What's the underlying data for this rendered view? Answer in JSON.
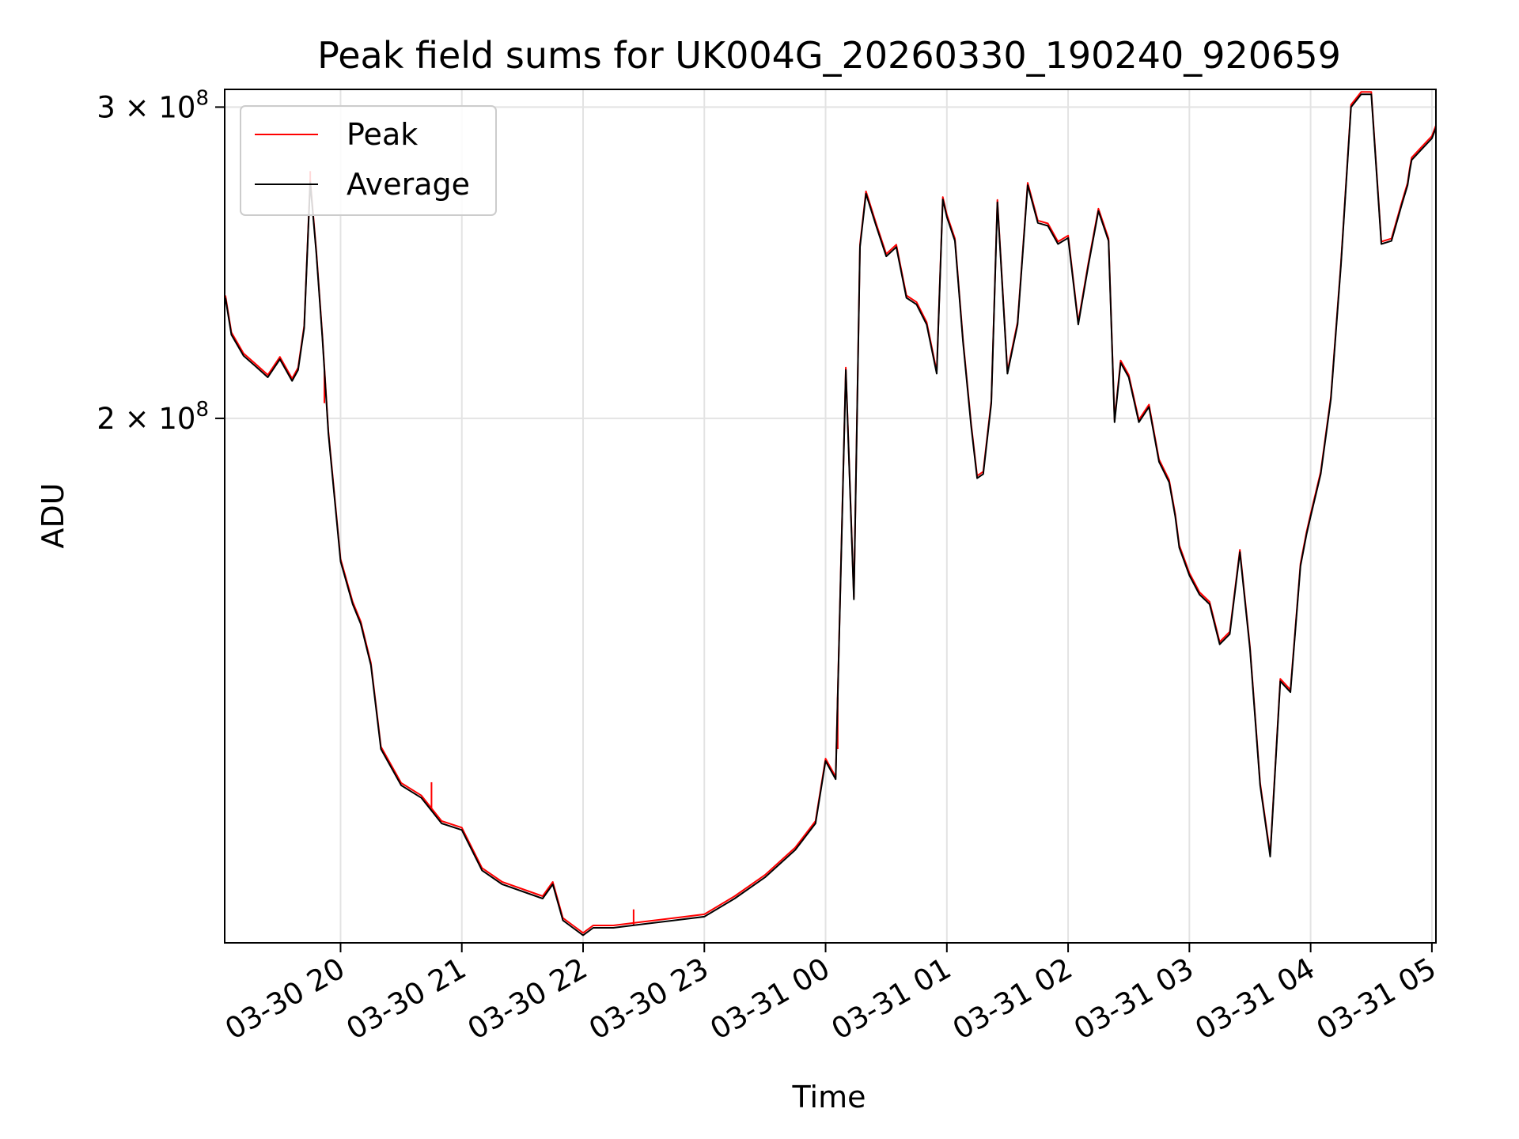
{
  "chart_data": {
    "type": "line",
    "title": "Peak field sums for UK004G_20260330_190240_920659",
    "xlabel": "Time",
    "ylabel": "ADU",
    "y_scale": "log",
    "grid": true,
    "legend_position": "top-left",
    "xlim": [
      "2026-03-30 19:02:40",
      "2026-03-31 05:02:00"
    ],
    "ylim": [
      101000000,
      307000000
    ],
    "x_ticks": [
      "03-30 20",
      "03-30 21",
      "03-30 22",
      "03-30 23",
      "03-31 00",
      "03-31 01",
      "03-31 02",
      "03-31 03",
      "03-31 04",
      "03-31 05"
    ],
    "y_ticks": [
      {
        "value": 200000000,
        "mantissa": "2",
        "exponent": "8"
      },
      {
        "value": 300000000,
        "mantissa": "3",
        "exponent": "8"
      }
    ],
    "series": [
      {
        "name": "Peak",
        "color": "#ff0000",
        "stroke_width": 2
      },
      {
        "name": "Average",
        "color": "#000000",
        "stroke_width": 2
      }
    ],
    "x": [
      "03-30 19:03",
      "03-30 19:06",
      "03-30 19:12",
      "03-30 19:18",
      "03-30 19:24",
      "03-30 19:30",
      "03-30 19:36",
      "03-30 19:39",
      "03-30 19:42",
      "03-30 19:45",
      "03-30 19:48",
      "03-30 19:51",
      "03-30 19:54",
      "03-30 20:00",
      "03-30 20:06",
      "03-30 20:10",
      "03-30 20:15",
      "03-30 20:20",
      "03-30 20:30",
      "03-30 20:40",
      "03-30 20:50",
      "03-30 21:00",
      "03-30 21:10",
      "03-30 21:20",
      "03-30 21:30",
      "03-30 21:40",
      "03-30 21:45",
      "03-30 21:50",
      "03-30 21:55",
      "03-30 22:00",
      "03-30 22:05",
      "03-30 22:15",
      "03-30 22:30",
      "03-30 22:45",
      "03-30 23:00",
      "03-30 23:15",
      "03-30 23:30",
      "03-30 23:45",
      "03-30 23:55",
      "03-31 00:00",
      "03-31 00:05",
      "03-31 00:10",
      "03-31 00:14",
      "03-31 00:17",
      "03-31 00:20",
      "03-31 00:25",
      "03-31 00:30",
      "03-31 00:35",
      "03-31 00:40",
      "03-31 00:45",
      "03-31 00:50",
      "03-31 00:55",
      "03-31 00:58",
      "03-31 01:00",
      "03-31 01:04",
      "03-31 01:08",
      "03-31 01:12",
      "03-31 01:15",
      "03-31 01:18",
      "03-31 01:22",
      "03-31 01:25",
      "03-31 01:30",
      "03-31 01:35",
      "03-31 01:40",
      "03-31 01:45",
      "03-31 01:50",
      "03-31 01:55",
      "03-31 02:00",
      "03-31 02:05",
      "03-31 02:10",
      "03-31 02:15",
      "03-31 02:20",
      "03-31 02:23",
      "03-31 02:26",
      "03-31 02:30",
      "03-31 02:35",
      "03-31 02:40",
      "03-31 02:45",
      "03-31 02:50",
      "03-31 02:53",
      "03-31 02:55",
      "03-31 03:00",
      "03-31 03:05",
      "03-31 03:10",
      "03-31 03:15",
      "03-31 03:20",
      "03-31 03:25",
      "03-31 03:30",
      "03-31 03:35",
      "03-31 03:40",
      "03-31 03:45",
      "03-31 03:50",
      "03-31 03:55",
      "03-31 03:58",
      "03-31 04:00",
      "03-31 04:05",
      "03-31 04:10",
      "03-31 04:15",
      "03-31 04:20",
      "03-31 04:25",
      "03-31 04:30",
      "03-31 04:35",
      "03-31 04:40",
      "03-31 04:45",
      "03-31 04:48",
      "03-31 04:49",
      "03-31 04:50",
      "03-31 04:55",
      "03-31 05:00",
      "03-31 05:02"
    ],
    "values": [
      234000000,
      223000000,
      217000000,
      214000000,
      211000000,
      216000000,
      210000000,
      213000000,
      225000000,
      272000000,
      248000000,
      222000000,
      196000000,
      166000000,
      157000000,
      153000000,
      145000000,
      130000000,
      124000000,
      122000000,
      118000000,
      117000000,
      111000000,
      109000000,
      108000000,
      107000000,
      109000000,
      104000000,
      103000000,
      102000000,
      103000000,
      103000000,
      103500000,
      104000000,
      104500000,
      107000000,
      110000000,
      114000000,
      118000000,
      128000000,
      125000000,
      213000000,
      158000000,
      250000000,
      268000000,
      257000000,
      247000000,
      250000000,
      234000000,
      232000000,
      226000000,
      212000000,
      266000000,
      260000000,
      252000000,
      221000000,
      198000000,
      185000000,
      186000000,
      204000000,
      265000000,
      212000000,
      226000000,
      271000000,
      258000000,
      257000000,
      251000000,
      253000000,
      226000000,
      244000000,
      262000000,
      252000000,
      199000000,
      215000000,
      211000000,
      199000000,
      203000000,
      189000000,
      184000000,
      176000000,
      169000000,
      163000000,
      159000000,
      157000000,
      149000000,
      151000000,
      168000000,
      148000000,
      124000000,
      113000000,
      142000000,
      140000000,
      165000000,
      172000000,
      176000000,
      186000000,
      205000000,
      244000000,
      300000000,
      305000000,
      305000000,
      251000000,
      252000000,
      264000000,
      271000000,
      276000000,
      280000000,
      284000000,
      288000000,
      292000000
    ]
  },
  "extra_peaks": [
    {
      "x": "03-30 19:45",
      "y": 276000000
    },
    {
      "x": "03-30 19:52",
      "y": 204000000
    },
    {
      "x": "03-30 20:45",
      "y": 124500000
    },
    {
      "x": "03-30 22:25",
      "y": 105500000
    },
    {
      "x": "03-31 00:06",
      "y": 130000000
    }
  ]
}
